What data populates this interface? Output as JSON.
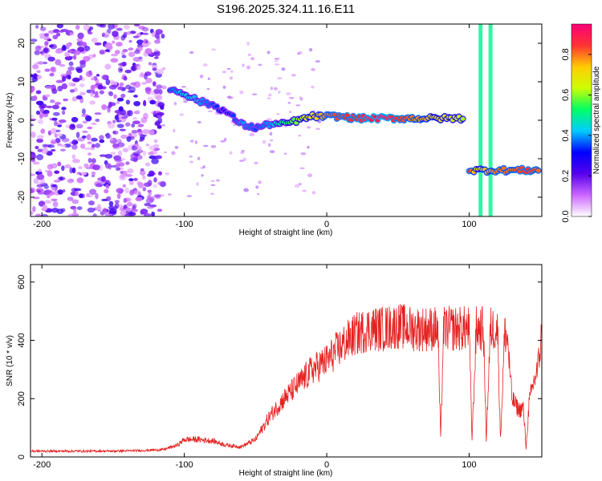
{
  "figure_title": "S196.2025.324.11.16.E11",
  "chart_data": [
    {
      "type": "heatmap",
      "title": "S196.2025.324.11.16.E11",
      "xlabel": "Height of straight line (km)",
      "ylabel": "Frequency (Hz)",
      "xlim": [
        -208,
        151
      ],
      "ylim": [
        -25,
        25
      ],
      "xticks": [
        -200,
        -100,
        0,
        100
      ],
      "yticks": [
        -20,
        -10,
        0,
        10,
        20
      ],
      "colorbar": {
        "label": "Normalized spectral amplitude",
        "range": [
          0.0,
          0.95
        ],
        "ticks": [
          0.0,
          0.2,
          0.4,
          0.6,
          0.8
        ],
        "tick_labels": [
          "0.0",
          "0.2",
          "0.4",
          "0.6",
          "0.8"
        ],
        "colormap": [
          "#ffffff",
          "#cc66ff",
          "#5500ee",
          "#0000ff",
          "#00ccff",
          "#00ff66",
          "#ccff00",
          "#ffcc00",
          "#ff3333",
          "#ff0077"
        ]
      },
      "noise_region": {
        "x": [
          -208,
          -115
        ],
        "y": [
          -25,
          25
        ],
        "amplitude": 0.15
      },
      "signal_track": [
        {
          "x": -110,
          "y": 8,
          "amplitude": 0.35
        },
        {
          "x": -100,
          "y": 7,
          "amplitude": 0.45
        },
        {
          "x": -90,
          "y": 5,
          "amplitude": 0.4
        },
        {
          "x": -80,
          "y": 4,
          "amplitude": 0.35
        },
        {
          "x": -70,
          "y": 2,
          "amplitude": 0.3
        },
        {
          "x": -60,
          "y": -1,
          "amplitude": 0.4
        },
        {
          "x": -50,
          "y": -2,
          "amplitude": 0.35
        },
        {
          "x": -40,
          "y": -1,
          "amplitude": 0.4
        },
        {
          "x": -30,
          "y": -1,
          "amplitude": 0.5
        },
        {
          "x": -20,
          "y": 0,
          "amplitude": 0.6
        },
        {
          "x": -10,
          "y": 1,
          "amplitude": 0.7
        },
        {
          "x": 0,
          "y": 1,
          "amplitude": 0.8
        },
        {
          "x": 10,
          "y": 1,
          "amplitude": 0.85
        },
        {
          "x": 20,
          "y": 0.5,
          "amplitude": 0.85
        },
        {
          "x": 30,
          "y": 0.5,
          "amplitude": 0.9
        },
        {
          "x": 40,
          "y": 0.5,
          "amplitude": 0.9
        },
        {
          "x": 50,
          "y": 0.5,
          "amplitude": 0.85
        },
        {
          "x": 60,
          "y": 0.5,
          "amplitude": 0.8
        },
        {
          "x": 70,
          "y": 0.5,
          "amplitude": 0.75
        },
        {
          "x": 80,
          "y": 0.5,
          "amplitude": 0.7
        },
        {
          "x": 90,
          "y": 0.5,
          "amplitude": 0.65
        },
        {
          "x": 97,
          "y": 0.5,
          "amplitude": 0.6
        }
      ],
      "lower_track": [
        {
          "x": 100,
          "y": -13,
          "amplitude": 0.85
        },
        {
          "x": 105,
          "y": -13,
          "amplitude": 0.7
        },
        {
          "x": 120,
          "y": -13,
          "amplitude": 0.8
        },
        {
          "x": 130,
          "y": -13,
          "amplitude": 0.8
        },
        {
          "x": 140,
          "y": -13,
          "amplitude": 0.85
        },
        {
          "x": 150,
          "y": -13,
          "amplitude": 0.8
        }
      ],
      "vertical_features": [
        {
          "x": 108,
          "y": [
            -25,
            25
          ],
          "amplitude": 0.5
        },
        {
          "x": 115,
          "y": [
            -25,
            25
          ],
          "amplitude": 0.5
        }
      ]
    },
    {
      "type": "line",
      "xlabel": "Height of straight line (km)",
      "ylabel": "SNR (10 * v/v)",
      "xlim": [
        -208,
        151
      ],
      "ylim": [
        0,
        660
      ],
      "xticks": [
        -200,
        -100,
        0,
        100
      ],
      "yticks": [
        0,
        200,
        400,
        600
      ],
      "color": "#e62020",
      "series": [
        {
          "name": "SNR",
          "x": [
            -208,
            -190,
            -170,
            -150,
            -130,
            -115,
            -105,
            -100,
            -90,
            -80,
            -70,
            -60,
            -50,
            -40,
            -30,
            -20,
            -10,
            0,
            10,
            20,
            30,
            40,
            50,
            60,
            70,
            78,
            80,
            82,
            84,
            90,
            95,
            98,
            100,
            102,
            105,
            110,
            112,
            115,
            120,
            122,
            125,
            127,
            130,
            135,
            138,
            140,
            142,
            145,
            148,
            151
          ],
          "y": [
            20,
            20,
            20,
            20,
            22,
            25,
            40,
            60,
            60,
            55,
            40,
            35,
            60,
            140,
            200,
            250,
            300,
            330,
            380,
            420,
            440,
            440,
            450,
            440,
            440,
            440,
            60,
            440,
            440,
            440,
            440,
            440,
            440,
            60,
            440,
            440,
            60,
            440,
            440,
            60,
            430,
            400,
            200,
            160,
            170,
            30,
            180,
            250,
            300,
            420
          ]
        }
      ]
    }
  ]
}
